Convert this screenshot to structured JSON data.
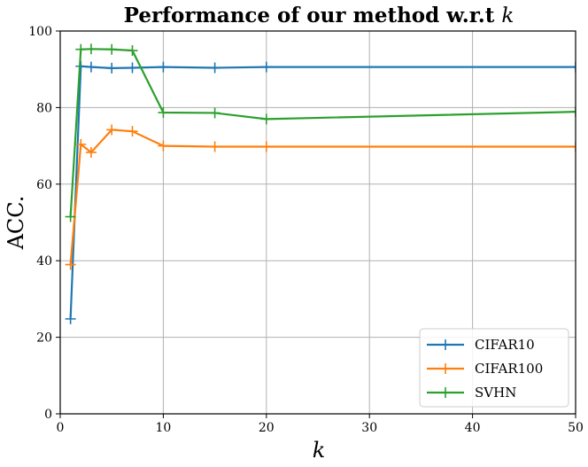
{
  "chart_data": {
    "type": "line",
    "title": "Performance of our method w.r.t",
    "title_variable": "k",
    "xlabel": "k",
    "ylabel": "ACC.",
    "xlim": [
      0,
      50
    ],
    "ylim": [
      0,
      100
    ],
    "xticks": [
      0,
      10,
      20,
      30,
      40,
      50
    ],
    "yticks": [
      0,
      20,
      40,
      60,
      80,
      100
    ],
    "grid": true,
    "legend_position": "lower-right",
    "series": [
      {
        "name": "CIFAR10",
        "color": "#1f77b4",
        "marker": "plus",
        "x": [
          1,
          2,
          3,
          5,
          7,
          10,
          15,
          20,
          50
        ],
        "y": [
          24.8,
          90.8,
          90.6,
          90.3,
          90.4,
          90.6,
          90.4,
          90.6,
          90.6
        ]
      },
      {
        "name": "CIFAR100",
        "color": "#ff7f0e",
        "marker": "plus",
        "x": [
          1,
          2,
          3,
          5,
          7,
          10,
          15,
          20,
          50
        ],
        "y": [
          39.0,
          70.4,
          68.3,
          74.2,
          73.8,
          70.0,
          69.8,
          69.8,
          69.8
        ]
      },
      {
        "name": "SVHN",
        "color": "#2ca02c",
        "marker": "plus",
        "x": [
          1,
          2,
          3,
          5,
          7,
          10,
          15,
          20,
          50
        ],
        "y": [
          51.5,
          95.2,
          95.3,
          95.2,
          94.9,
          78.7,
          78.6,
          77.0,
          78.9
        ]
      }
    ]
  }
}
